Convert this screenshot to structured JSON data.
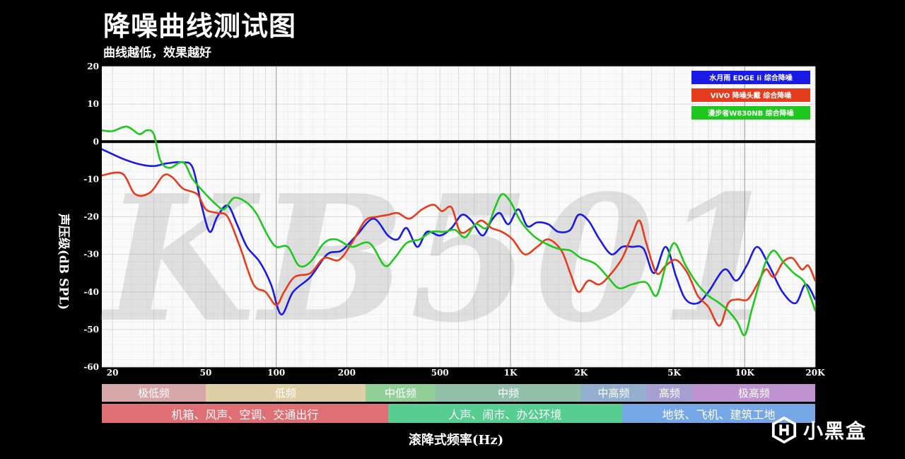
{
  "title": "降噪曲线测试图",
  "subtitle": "曲线越低，效果越好",
  "watermark": "KB501",
  "logo_text": "小黑盒",
  "chart_data": {
    "type": "line",
    "ylabel": "声压级(dB SPL)",
    "xlabel": "滚降式频率(Hz)",
    "xscale": "log",
    "xlim": [
      18,
      20000
    ],
    "ylim": [
      -60,
      20
    ],
    "grid": true,
    "legend_position": "top-right",
    "reference_line": 0,
    "yticks": [
      20,
      10,
      0,
      -10,
      -20,
      -30,
      -40,
      -50,
      -60
    ],
    "ytick_labels": [
      "20",
      "10",
      "0",
      "-10",
      "-20",
      "-30",
      "-40",
      "-50",
      "-60"
    ],
    "xticks": [
      20,
      50,
      100,
      200,
      500,
      1000,
      2000,
      5000,
      10000,
      20000
    ],
    "xtick_labels": [
      "20",
      "50",
      "100",
      "200",
      "500",
      "1K",
      "2K",
      "5K",
      "10K",
      "20K"
    ],
    "series": [
      {
        "name": "水月雨 EDGE ii 综合降噪",
        "color": "#1a1ae6",
        "points": [
          [
            18,
            -2
          ],
          [
            22,
            -4.5
          ],
          [
            26,
            -6
          ],
          [
            30,
            -6.5
          ],
          [
            34,
            -5.8
          ],
          [
            40,
            -5.5
          ],
          [
            44,
            -7
          ],
          [
            48,
            -17
          ],
          [
            52,
            -24
          ],
          [
            56,
            -20
          ],
          [
            62,
            -17
          ],
          [
            68,
            -22
          ],
          [
            75,
            -28
          ],
          [
            85,
            -32
          ],
          [
            95,
            -38
          ],
          [
            105,
            -46
          ],
          [
            118,
            -40
          ],
          [
            140,
            -36
          ],
          [
            165,
            -30
          ],
          [
            190,
            -29
          ],
          [
            220,
            -25
          ],
          [
            260,
            -20.5
          ],
          [
            300,
            -25
          ],
          [
            330,
            -26
          ],
          [
            360,
            -23
          ],
          [
            400,
            -28
          ],
          [
            440,
            -24
          ],
          [
            500,
            -25
          ],
          [
            560,
            -23
          ],
          [
            620,
            -19.5
          ],
          [
            680,
            -21
          ],
          [
            760,
            -25
          ],
          [
            830,
            -21
          ],
          [
            900,
            -19
          ],
          [
            980,
            -22
          ],
          [
            1080,
            -18
          ],
          [
            1180,
            -22.5
          ],
          [
            1300,
            -21.5
          ],
          [
            1450,
            -22
          ],
          [
            1600,
            -24
          ],
          [
            1800,
            -23.5
          ],
          [
            1950,
            -19.5
          ],
          [
            2150,
            -21
          ],
          [
            2400,
            -26
          ],
          [
            2700,
            -30
          ],
          [
            3000,
            -28
          ],
          [
            3300,
            -28
          ],
          [
            3700,
            -28.5
          ],
          [
            4100,
            -35
          ],
          [
            4600,
            -28
          ],
          [
            5100,
            -36
          ],
          [
            5600,
            -42
          ],
          [
            6300,
            -43
          ],
          [
            7000,
            -40
          ],
          [
            8200,
            -34
          ],
          [
            9200,
            -37
          ],
          [
            10200,
            -33
          ],
          [
            11300,
            -28
          ],
          [
            12700,
            -33
          ],
          [
            14500,
            -40
          ],
          [
            16500,
            -43
          ],
          [
            18200,
            -38
          ],
          [
            20000,
            -42
          ]
        ]
      },
      {
        "name": "VIVO 降噪头戴 综合降噪",
        "color": "#e63c1e",
        "points": [
          [
            18,
            -9
          ],
          [
            22,
            -8.5
          ],
          [
            25,
            -14
          ],
          [
            29,
            -13.5
          ],
          [
            33,
            -9
          ],
          [
            36,
            -9.5
          ],
          [
            40,
            -12.5
          ],
          [
            46,
            -14
          ],
          [
            50,
            -18
          ],
          [
            56,
            -19
          ],
          [
            62,
            -20
          ],
          [
            70,
            -28
          ],
          [
            80,
            -38
          ],
          [
            90,
            -40
          ],
          [
            100,
            -43.5
          ],
          [
            108,
            -40
          ],
          [
            120,
            -36
          ],
          [
            140,
            -35
          ],
          [
            160,
            -31
          ],
          [
            185,
            -31.5
          ],
          [
            210,
            -27
          ],
          [
            240,
            -21
          ],
          [
            270,
            -20
          ],
          [
            300,
            -19.5
          ],
          [
            330,
            -19
          ],
          [
            370,
            -20.5
          ],
          [
            420,
            -18
          ],
          [
            470,
            -16.8
          ],
          [
            510,
            -18.5
          ],
          [
            560,
            -17.5
          ],
          [
            610,
            -24
          ],
          [
            680,
            -23
          ],
          [
            750,
            -21
          ],
          [
            830,
            -23
          ],
          [
            920,
            -24
          ],
          [
            1020,
            -26
          ],
          [
            1150,
            -30
          ],
          [
            1300,
            -28
          ],
          [
            1450,
            -26
          ],
          [
            1650,
            -29
          ],
          [
            1800,
            -35
          ],
          [
            1950,
            -40
          ],
          [
            2150,
            -37
          ],
          [
            2400,
            -38
          ],
          [
            2700,
            -35
          ],
          [
            3000,
            -31
          ],
          [
            3300,
            -25
          ],
          [
            3550,
            -21
          ],
          [
            3800,
            -27
          ],
          [
            4200,
            -35
          ],
          [
            4600,
            -33
          ],
          [
            5100,
            -31.5
          ],
          [
            5700,
            -35
          ],
          [
            6300,
            -41
          ],
          [
            7000,
            -44
          ],
          [
            7800,
            -49
          ],
          [
            8500,
            -43
          ],
          [
            9300,
            -42
          ],
          [
            10300,
            -42
          ],
          [
            11300,
            -38
          ],
          [
            12300,
            -34
          ],
          [
            13300,
            -36
          ],
          [
            14600,
            -32
          ],
          [
            16000,
            -31
          ],
          [
            17500,
            -34
          ],
          [
            18700,
            -33
          ],
          [
            20000,
            -37
          ]
        ]
      },
      {
        "name": "漫步者W830NB 综合降噪",
        "color": "#1ec81e",
        "points": [
          [
            18,
            3
          ],
          [
            20,
            2.8
          ],
          [
            23,
            4
          ],
          [
            26,
            2
          ],
          [
            28,
            3
          ],
          [
            30,
            2
          ],
          [
            32,
            -5
          ],
          [
            35,
            -7
          ],
          [
            40,
            -5.5
          ],
          [
            44,
            -10
          ],
          [
            50,
            -14
          ],
          [
            56,
            -17
          ],
          [
            60,
            -18
          ],
          [
            66,
            -15
          ],
          [
            74,
            -16
          ],
          [
            82,
            -19
          ],
          [
            92,
            -25
          ],
          [
            100,
            -28
          ],
          [
            112,
            -28
          ],
          [
            125,
            -33
          ],
          [
            140,
            -32
          ],
          [
            160,
            -27
          ],
          [
            180,
            -26
          ],
          [
            210,
            -28
          ],
          [
            250,
            -27
          ],
          [
            290,
            -33
          ],
          [
            320,
            -31
          ],
          [
            360,
            -27
          ],
          [
            410,
            -26
          ],
          [
            460,
            -24
          ],
          [
            520,
            -24
          ],
          [
            580,
            -23.5
          ],
          [
            640,
            -25.5
          ],
          [
            710,
            -22
          ],
          [
            790,
            -23
          ],
          [
            860,
            -17.5
          ],
          [
            920,
            -14
          ],
          [
            1000,
            -16
          ],
          [
            1100,
            -21
          ],
          [
            1250,
            -25
          ],
          [
            1400,
            -27
          ],
          [
            1600,
            -28.5
          ],
          [
            1800,
            -29
          ],
          [
            2000,
            -31
          ],
          [
            2300,
            -32.5
          ],
          [
            2600,
            -36
          ],
          [
            2900,
            -39
          ],
          [
            3300,
            -38
          ],
          [
            3800,
            -37.5
          ],
          [
            4200,
            -41
          ],
          [
            4600,
            -33
          ],
          [
            5000,
            -27
          ],
          [
            5600,
            -33
          ],
          [
            6300,
            -38
          ],
          [
            7000,
            -41
          ],
          [
            7800,
            -43
          ],
          [
            8500,
            -45
          ],
          [
            9300,
            -48
          ],
          [
            10000,
            -51.5
          ],
          [
            10700,
            -45
          ],
          [
            11500,
            -38
          ],
          [
            12300,
            -32
          ],
          [
            13300,
            -29
          ],
          [
            14600,
            -32
          ],
          [
            16200,
            -35
          ],
          [
            17800,
            -37
          ],
          [
            19000,
            -41
          ],
          [
            20000,
            -45
          ]
        ]
      }
    ]
  },
  "bands_row1": [
    {
      "label": "极低频",
      "from": 18,
      "to": 50,
      "color": "#d9a6a8"
    },
    {
      "label": "低频",
      "from": 50,
      "to": 240,
      "color": "#dfcfa6"
    },
    {
      "label": "中低频",
      "from": 240,
      "to": 480,
      "color": "#93cf99"
    },
    {
      "label": "中频",
      "from": 480,
      "to": 2000,
      "color": "#92c0aa"
    },
    {
      "label": "中高频",
      "from": 2000,
      "to": 3800,
      "color": "#93aecf"
    },
    {
      "label": "高频",
      "from": 3800,
      "to": 6000,
      "color": "#a79fd1"
    },
    {
      "label": "极高频",
      "from": 6000,
      "to": 20000,
      "color": "#be93cf"
    }
  ],
  "bands_row2": [
    {
      "label": "机箱、风声、空调、交通出行",
      "from": 18,
      "to": 300,
      "color": "#e06e75"
    },
    {
      "label": "人声、闹市、办公环境",
      "from": 300,
      "to": 3000,
      "color": "#57cd91"
    },
    {
      "label": "地铁、飞机、建筑工地",
      "from": 3000,
      "to": 20000,
      "color": "#75a6e6"
    }
  ]
}
